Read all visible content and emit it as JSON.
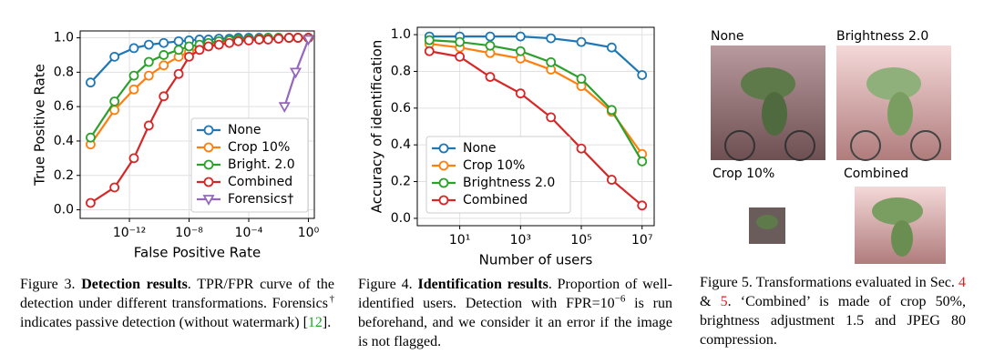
{
  "chart_data": [
    {
      "type": "line",
      "xscale": "log",
      "grid": true,
      "legend": "lower right",
      "xlabel": "False Positive Rate",
      "ylabel": "True Positive Rate",
      "xlim": [
        5e-16,
        2.5
      ],
      "ylim": [
        -0.05,
        1.04
      ],
      "xticks": [
        {
          "value": 1e-12,
          "label": "10⁻¹²"
        },
        {
          "value": 1e-08,
          "label": "10⁻⁸"
        },
        {
          "value": 0.0001,
          "label": "10⁻⁴"
        },
        {
          "value": 1,
          "label": "10⁰"
        }
      ],
      "yticks": [
        {
          "value": 0,
          "label": "0.0"
        },
        0.2,
        0.4,
        0.6,
        0.8,
        {
          "value": 1,
          "label": "1.0"
        }
      ],
      "series": [
        {
          "name": "None",
          "color": "#1f77b4",
          "marker": "o",
          "x": [
            2.5e-15,
            1e-13,
            2e-12,
            2e-11,
            2e-10,
            2e-09,
            1e-08,
            5e-08,
            2e-07,
            1e-06,
            5e-06,
            2e-05,
            0.0001,
            0.0005,
            0.002,
            0.01,
            0.05,
            0.2,
            1
          ],
          "values": [
            0.74,
            0.89,
            0.94,
            0.96,
            0.97,
            0.98,
            0.985,
            0.99,
            0.99,
            0.995,
            0.995,
            1,
            1,
            1,
            1,
            1,
            1,
            1,
            1
          ]
        },
        {
          "name": "Crop 10%",
          "color": "#ff7f0e",
          "marker": "o",
          "x": [
            2.5e-15,
            1e-13,
            2e-12,
            2e-11,
            2e-10,
            2e-09,
            1e-08,
            5e-08,
            2e-07,
            1e-06,
            5e-06,
            2e-05,
            0.0001,
            0.0005,
            0.002,
            0.01,
            0.05,
            0.2,
            1
          ],
          "values": [
            0.38,
            0.58,
            0.7,
            0.78,
            0.84,
            0.89,
            0.92,
            0.94,
            0.96,
            0.97,
            0.98,
            0.985,
            0.99,
            0.99,
            0.995,
            1,
            1,
            1,
            1
          ]
        },
        {
          "name": "Bright. 2.0",
          "color": "#2ca02c",
          "marker": "o",
          "x": [
            2.5e-15,
            1e-13,
            2e-12,
            2e-11,
            2e-10,
            2e-09,
            1e-08,
            5e-08,
            2e-07,
            1e-06,
            5e-06,
            2e-05,
            0.0001,
            0.0005,
            0.002,
            0.01,
            0.05,
            0.2,
            1
          ],
          "values": [
            0.42,
            0.63,
            0.78,
            0.86,
            0.9,
            0.93,
            0.95,
            0.96,
            0.97,
            0.98,
            0.985,
            0.99,
            0.99,
            0.995,
            1,
            1,
            1,
            1,
            1
          ]
        },
        {
          "name": "Combined",
          "color": "#d62728",
          "marker": "o",
          "x": [
            2.5e-15,
            1e-13,
            2e-12,
            2e-11,
            2e-10,
            2e-09,
            1e-08,
            5e-08,
            2e-07,
            1e-06,
            5e-06,
            2e-05,
            0.0001,
            0.0005,
            0.002,
            0.01,
            0.05,
            0.2,
            1
          ],
          "values": [
            0.04,
            0.13,
            0.3,
            0.49,
            0.66,
            0.79,
            0.89,
            0.93,
            0.95,
            0.96,
            0.97,
            0.98,
            0.985,
            0.99,
            0.99,
            0.995,
            1,
            1,
            1
          ]
        },
        {
          "name": "Forensics†",
          "color": "#9467bd",
          "marker": "v",
          "x": [
            0.025,
            0.14,
            1
          ],
          "values": [
            0.6,
            0.8,
            0.99
          ]
        }
      ]
    },
    {
      "type": "line",
      "xscale": "log",
      "grid": true,
      "legend": "lower left",
      "xlabel": "Number of users",
      "ylabel": "Accuracy of identification",
      "xlim": [
        0.4,
        25000000
      ],
      "ylim": [
        -0.04,
        1.04
      ],
      "xticks": [
        {
          "value": 10,
          "label": "10¹"
        },
        {
          "value": 1000,
          "label": "10³"
        },
        {
          "value": 100000,
          "label": "10⁵"
        },
        {
          "value": 10000000,
          "label": "10⁷"
        }
      ],
      "yticks": [
        {
          "value": 0,
          "label": "0.0"
        },
        0.2,
        0.4,
        0.6,
        0.8,
        {
          "value": 1,
          "label": "1.0"
        }
      ],
      "series": [
        {
          "name": "None",
          "color": "#1f77b4",
          "marker": "o",
          "x": [
            1,
            10,
            100,
            1000,
            10000,
            100000,
            1000000,
            10000000
          ],
          "values": [
            0.99,
            0.99,
            0.99,
            0.99,
            0.98,
            0.96,
            0.93,
            0.78
          ]
        },
        {
          "name": "Crop 10%",
          "color": "#ff7f0e",
          "marker": "o",
          "x": [
            1,
            10,
            100,
            1000,
            10000,
            100000,
            1000000,
            10000000
          ],
          "values": [
            0.95,
            0.93,
            0.9,
            0.87,
            0.81,
            0.72,
            0.58,
            0.35
          ]
        },
        {
          "name": "Brightness 2.0",
          "color": "#2ca02c",
          "marker": "o",
          "x": [
            1,
            10,
            100,
            1000,
            10000,
            100000,
            1000000,
            10000000
          ],
          "values": [
            0.97,
            0.96,
            0.94,
            0.91,
            0.85,
            0.76,
            0.59,
            0.31
          ]
        },
        {
          "name": "Combined",
          "color": "#d62728",
          "marker": "o",
          "x": [
            1,
            10,
            100,
            1000,
            10000,
            100000,
            1000000,
            10000000
          ],
          "values": [
            0.91,
            0.88,
            0.77,
            0.68,
            0.55,
            0.38,
            0.21,
            0.07
          ]
        }
      ]
    }
  ],
  "figure5": {
    "labels": [
      "None",
      "Brightness 2.0",
      "Crop 10%",
      "Combined"
    ]
  },
  "captions": [
    {
      "parts": [
        {
          "text": "Figure 3. "
        },
        {
          "text": "Detection results",
          "style": "bold"
        },
        {
          "text": ". TPR/FPR curve of the detection under different transformations. Forensics"
        },
        {
          "text": "†",
          "style": "sup"
        },
        {
          "text": " indicates passive detection (without watermark) ["
        },
        {
          "text": "12",
          "style": "green"
        },
        {
          "text": "]."
        }
      ]
    },
    {
      "parts": [
        {
          "text": "Figure 4. "
        },
        {
          "text": "Identification results",
          "style": "bold"
        },
        {
          "text": ". Proportion of well-identified users. Detection with FPR=10"
        },
        {
          "text": "−6",
          "style": "sup"
        },
        {
          "text": " is run beforehand, and we consider it an error if the image is not flagged."
        }
      ]
    },
    {
      "parts": [
        {
          "text": "Figure 5. Transformations evaluated in Sec. "
        },
        {
          "text": "4",
          "style": "red"
        },
        {
          "text": " & "
        },
        {
          "text": "5",
          "style": "red"
        },
        {
          "text": ". ‘Combined’ is made of crop 50%, brightness adjustment 1.5 and JPEG 80 compression."
        }
      ]
    }
  ]
}
